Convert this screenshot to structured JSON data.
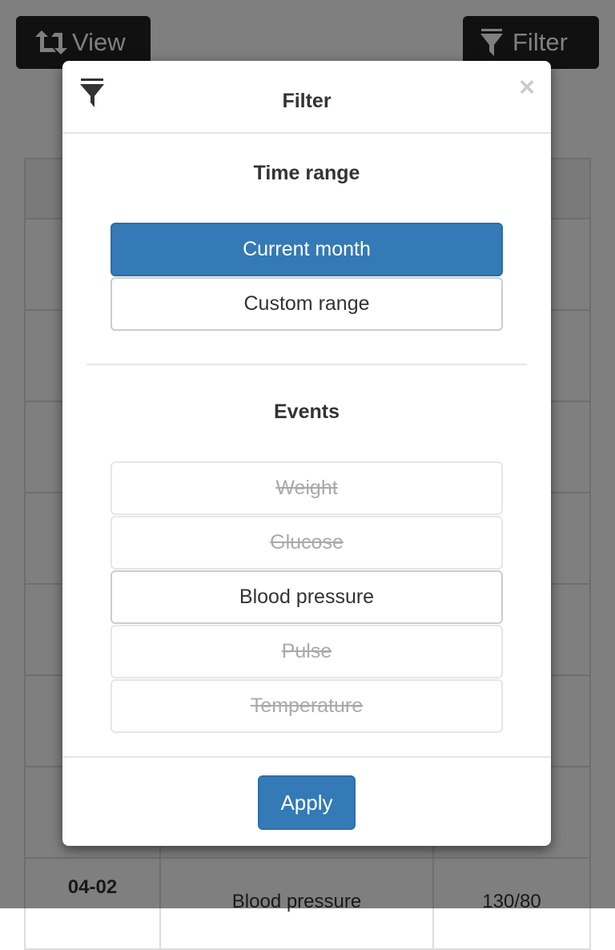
{
  "toolbar": {
    "view_label": "View",
    "filter_label": "Filter"
  },
  "table": {
    "last_row": {
      "date": "04-02",
      "event": "Blood pressure",
      "value": "130/80"
    }
  },
  "modal": {
    "title": "Filter",
    "close": "×",
    "time_range": {
      "heading": "Time range",
      "options": [
        {
          "label": "Current month",
          "selected": true
        },
        {
          "label": "Custom range",
          "selected": false
        }
      ]
    },
    "events": {
      "heading": "Events",
      "options": [
        {
          "label": "Weight",
          "enabled": false
        },
        {
          "label": "Glucose",
          "enabled": false
        },
        {
          "label": "Blood pressure",
          "enabled": true
        },
        {
          "label": "Pulse",
          "enabled": false
        },
        {
          "label": "Temperature",
          "enabled": false
        }
      ]
    },
    "apply_label": "Apply"
  },
  "colors": {
    "primary": "#337ab7",
    "toolbar_button": "#222222"
  }
}
